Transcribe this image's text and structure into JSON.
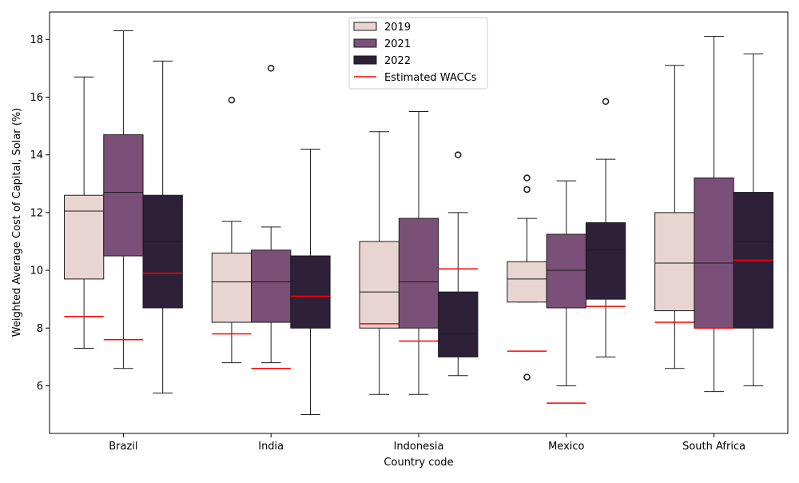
{
  "chart_data": {
    "type": "box",
    "xlabel": "Country code",
    "ylabel": "Weighted Average Cost of Capital, Solar (%)",
    "ylim": [
      4.35,
      18.95
    ],
    "yticks": [
      6,
      8,
      10,
      12,
      14,
      16,
      18
    ],
    "categories": [
      "Brazil",
      "India",
      "Indonesia",
      "Mexico",
      "South Africa"
    ],
    "series": [
      {
        "name": "2019",
        "color": "#e8d4d0",
        "boxes": [
          {
            "whislo": 7.3,
            "q1": 9.7,
            "med": 12.05,
            "q3": 12.6,
            "whishi": 16.7,
            "fliers": [],
            "wacc": 8.4
          },
          {
            "whislo": 6.8,
            "q1": 8.2,
            "med": 9.6,
            "q3": 10.6,
            "whishi": 11.7,
            "fliers": [
              15.9
            ],
            "wacc": 7.8
          },
          {
            "whislo": 5.7,
            "q1": 8.0,
            "med": 9.25,
            "q3": 11.0,
            "whishi": 14.8,
            "fliers": [],
            "wacc": 8.15
          },
          {
            "whislo": 8.9,
            "q1": 8.9,
            "med": 9.7,
            "q3": 10.3,
            "whishi": 11.8,
            "fliers": [
              6.3,
              12.8,
              13.2
            ],
            "wacc": 7.2
          },
          {
            "whislo": 6.6,
            "q1": 8.6,
            "med": 10.25,
            "q3": 12.0,
            "whishi": 17.1,
            "fliers": [],
            "wacc": 8.2
          }
        ]
      },
      {
        "name": "2021",
        "color": "#7b5078",
        "boxes": [
          {
            "whislo": 6.6,
            "q1": 10.5,
            "med": 12.7,
            "q3": 14.7,
            "whishi": 18.3,
            "fliers": [],
            "wacc": 7.6
          },
          {
            "whislo": 6.8,
            "q1": 8.2,
            "med": 9.6,
            "q3": 10.7,
            "whishi": 11.5,
            "fliers": [
              17.0
            ],
            "wacc": 6.6
          },
          {
            "whislo": 5.7,
            "q1": 8.0,
            "med": 9.6,
            "q3": 11.8,
            "whishi": 15.5,
            "fliers": [],
            "wacc": 7.55
          },
          {
            "whislo": 6.0,
            "q1": 8.7,
            "med": 10.0,
            "q3": 11.25,
            "whishi": 13.1,
            "fliers": [],
            "wacc": 5.4
          },
          {
            "whislo": 5.8,
            "q1": 8.0,
            "med": 10.25,
            "q3": 13.2,
            "whishi": 18.1,
            "fliers": [],
            "wacc": 8.0
          }
        ]
      },
      {
        "name": "2022",
        "color": "#2e2039",
        "boxes": [
          {
            "whislo": 5.75,
            "q1": 8.7,
            "med": 11.0,
            "q3": 12.6,
            "whishi": 17.25,
            "fliers": [],
            "wacc": 9.9
          },
          {
            "whislo": 5.0,
            "q1": 8.0,
            "med": 9.1,
            "q3": 10.5,
            "whishi": 14.2,
            "fliers": [],
            "wacc": 9.1
          },
          {
            "whislo": 6.35,
            "q1": 7.0,
            "med": 7.8,
            "q3": 9.25,
            "whishi": 12.0,
            "fliers": [
              14.0
            ],
            "wacc": 10.05
          },
          {
            "whislo": 7.0,
            "q1": 9.0,
            "med": 10.7,
            "q3": 11.65,
            "whishi": 13.85,
            "fliers": [
              15.85
            ],
            "wacc": 8.75
          },
          {
            "whislo": 6.0,
            "q1": 8.0,
            "med": 11.0,
            "q3": 12.7,
            "whishi": 17.5,
            "fliers": [],
            "wacc": 10.35
          }
        ]
      }
    ],
    "reference_series": {
      "name": "Estimated WACCs",
      "color": "#ff0000"
    },
    "legend": {
      "placement": "top-center"
    }
  }
}
